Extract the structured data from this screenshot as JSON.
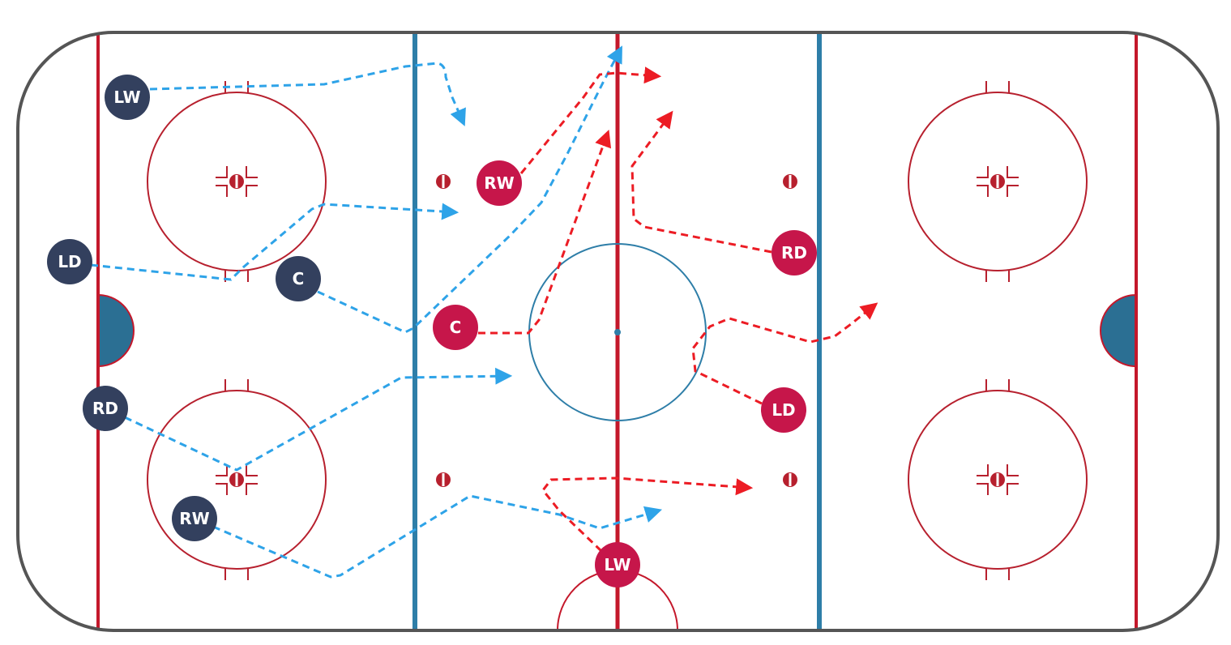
{
  "colors": {
    "boards": "#555555",
    "red_line": "#c4182b",
    "blue_line": "#2e7ea8",
    "circle": "#b7202e",
    "center_circle": "#2e7ea8",
    "crease": "#2b6f93",
    "team_dark": "#33405e",
    "team_red": "#c6164a",
    "blue_arrow": "#2ea3e8",
    "red_arrow": "#ec1c24"
  },
  "players": {
    "dark_lw": "LW",
    "dark_ld": "LD",
    "dark_c": "C",
    "dark_rd": "RD",
    "dark_rw": "RW",
    "red_rw": "RW",
    "red_c": "C",
    "red_rd": "RD",
    "red_ld": "LD",
    "red_lw": "LW"
  }
}
